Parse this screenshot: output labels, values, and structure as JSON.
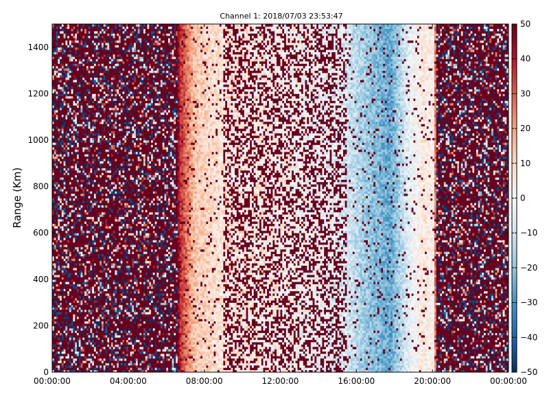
{
  "chart_data": {
    "type": "heatmap",
    "title": "Channel 1: 2018/07/03 23:53:47",
    "xlabel": "",
    "ylabel": "Range (Km)",
    "x_ticks": [
      "00:00:00",
      "04:00:00",
      "08:00:00",
      "12:00:00",
      "16:00:00",
      "20:00:00",
      "00:00:00"
    ],
    "x_range_hours": [
      0,
      24
    ],
    "y_ticks": [
      "0",
      "200",
      "400",
      "600",
      "800",
      "1000",
      "1200",
      "1400"
    ],
    "ylim": [
      0,
      1500
    ],
    "colorbar": {
      "ticks": [
        "−50",
        "−40",
        "−30",
        "−20",
        "−10",
        "0",
        "10",
        "20",
        "30",
        "40",
        "50"
      ],
      "range": [
        -50,
        50
      ],
      "colormap": "RdBu_r"
    },
    "hourly_column_value_profile": [
      {
        "hour": 0,
        "value": 50
      },
      {
        "hour": 6.6,
        "value": 50
      },
      {
        "hour": 6.7,
        "value": 38
      },
      {
        "hour": 7.5,
        "value": 14
      },
      {
        "hour": 9,
        "value": 6
      },
      {
        "hour": 12,
        "value": 2
      },
      {
        "hour": 15,
        "value": -4
      },
      {
        "hour": 16.5,
        "value": -18
      },
      {
        "hour": 17.8,
        "value": -26
      },
      {
        "hour": 18.7,
        "value": -6
      },
      {
        "hour": 19.5,
        "value": 6
      },
      {
        "hour": 20.1,
        "value": 2
      },
      {
        "hour": 20.2,
        "value": 50
      },
      {
        "hour": 24,
        "value": 50
      }
    ],
    "notes_noise_regions": "speckled noise dominant before 06:40 and after 20:10"
  }
}
